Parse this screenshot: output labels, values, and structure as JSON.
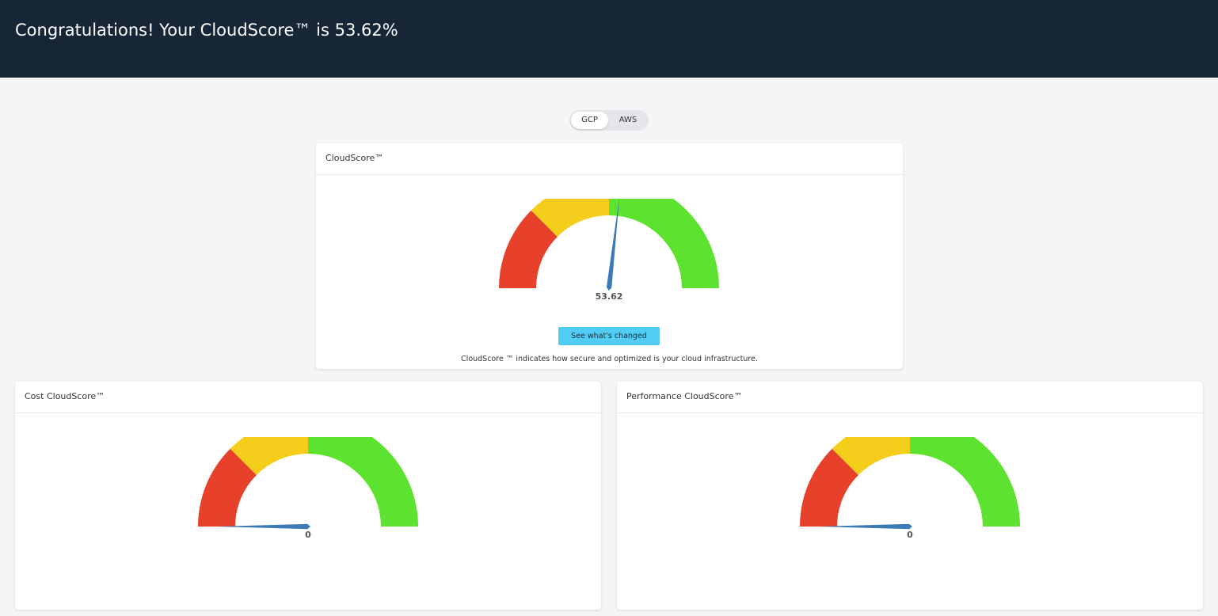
{
  "header": {
    "title": "Congratulations! Your CloudScore™ is 53.62%"
  },
  "provider_toggle": {
    "options": [
      "GCP",
      "AWS"
    ],
    "selected": "GCP"
  },
  "main_card": {
    "title": "CloudScore™",
    "gauge_value": 53.62,
    "gauge_label": "53.62",
    "button_label": "See what's changed",
    "description": "CloudScore ™ indicates how secure and optimized is your cloud infrastructure."
  },
  "cost_card": {
    "title": "Cost CloudScore™",
    "gauge_value": 0,
    "gauge_label": "0"
  },
  "performance_card": {
    "title": "Performance CloudScore™",
    "gauge_value": 0,
    "gauge_label": "0"
  },
  "gauge_colors": {
    "low": "#e8412b",
    "mid": "#f5cd1b",
    "high": "#5de22f",
    "needle": "#3b7ab5"
  },
  "gauge_bands": [
    {
      "from": 0,
      "to": 25,
      "color": "low"
    },
    {
      "from": 25,
      "to": 50,
      "color": "mid"
    },
    {
      "from": 50,
      "to": 100,
      "color": "high"
    }
  ]
}
